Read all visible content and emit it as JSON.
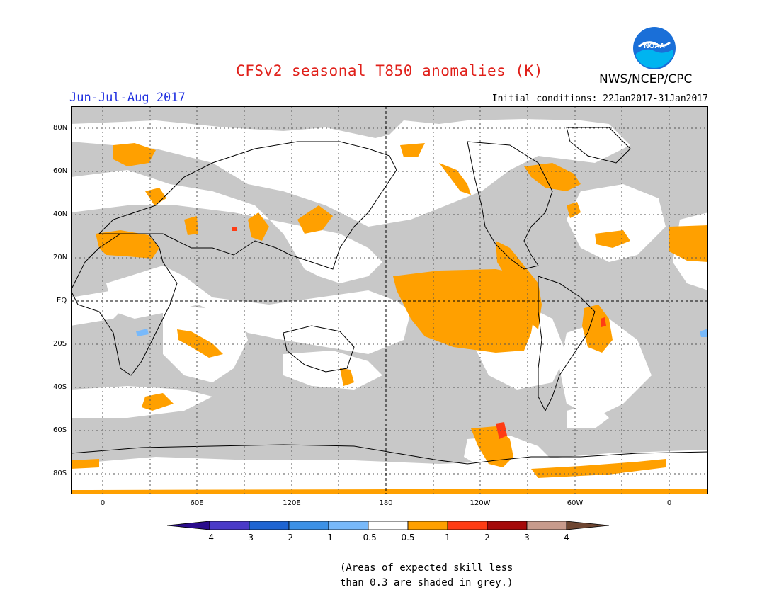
{
  "header": {
    "title": "CFSv2 seasonal T850 anomalies (K)",
    "season": "Jun-Jul-Aug 2017",
    "initial_conditions": "Initial conditions: 22Jan2017-31Jan2017",
    "agency": "NWS/NCEP/CPC",
    "logo_text": "NOAA"
  },
  "map": {
    "lat_labels": [
      "80N",
      "60N",
      "40N",
      "20N",
      "EQ",
      "20S",
      "40S",
      "60S",
      "80S"
    ],
    "lon_labels": [
      "0",
      "60E",
      "120E",
      "180",
      "120W",
      "60W",
      "0"
    ]
  },
  "colorbar": {
    "labels": [
      "-4",
      "-3",
      "-2",
      "-1",
      "-0.5",
      "0.5",
      "1",
      "2",
      "3",
      "4"
    ],
    "colors": [
      "#2a0c8c",
      "#4a3ac8",
      "#1e64d2",
      "#3c91e6",
      "#78b9fa",
      "#ffffff",
      "#ffa000",
      "#ff3c14",
      "#a50a0a",
      "#c89b8c",
      "#6e4632"
    ]
  },
  "footnote": {
    "line1": "(Areas of expected skill less",
    "line2": "than 0.3 are shaded in grey.)"
  }
}
